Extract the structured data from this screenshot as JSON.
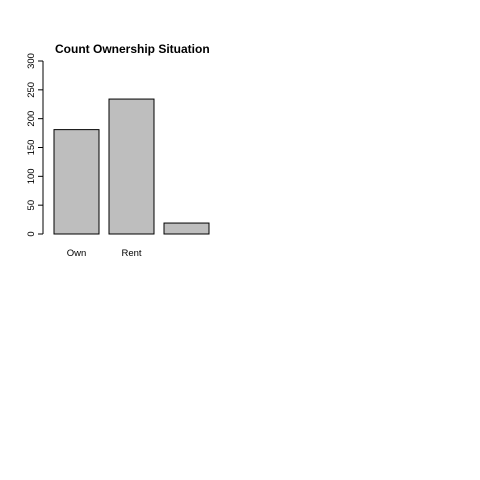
{
  "chart_data": {
    "type": "bar",
    "title": "Count Ownership Situation",
    "xlabel": "",
    "ylabel": "",
    "categories": [
      "Own",
      "Rent",
      ""
    ],
    "values": [
      181,
      234,
      19
    ],
    "ylim": [
      0,
      300
    ],
    "yticks": [
      0,
      50,
      100,
      150,
      200,
      250,
      300
    ],
    "grid": false,
    "legend": "none",
    "colors": {
      "bar_fill": "#bebebe",
      "bar_stroke": "#000000",
      "text": "#000000",
      "background": "#ffffff"
    }
  }
}
